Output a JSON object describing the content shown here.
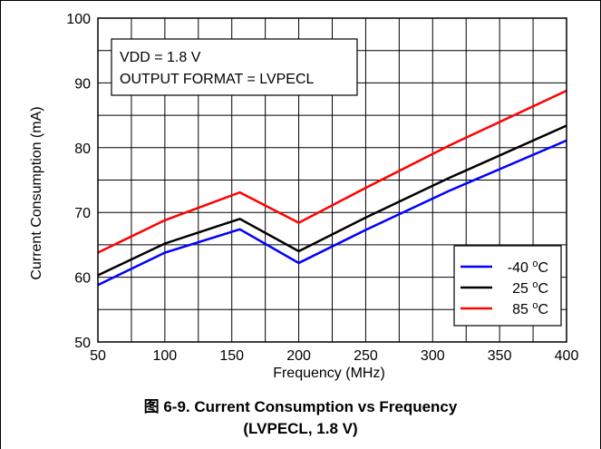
{
  "chart_data": {
    "type": "line",
    "xlabel": "Frequency (MHz)",
    "ylabel": "Current Consumption (mA)",
    "xlim": [
      50,
      400
    ],
    "ylim": [
      50,
      100
    ],
    "x_ticks": [
      "50",
      "100",
      "150",
      "200",
      "250",
      "300",
      "350",
      "400"
    ],
    "y_ticks": [
      "50",
      "60",
      "70",
      "80",
      "90",
      "100"
    ],
    "grid": true,
    "legend_position": "bottom-right",
    "annotation": [
      "VDD = 1.8 V",
      "OUTPUT FORMAT = LVPECL"
    ],
    "series": [
      {
        "name": "-40 °C",
        "legend_value": "-40",
        "color": "#0000ff",
        "x": [
          50,
          100,
          156,
          200,
          250,
          312,
          400
        ],
        "y": [
          58.8,
          63.8,
          67.4,
          62.2,
          67.3,
          73.3,
          81.1
        ]
      },
      {
        "name": "25 °C",
        "legend_value": "25",
        "color": "#000000",
        "x": [
          50,
          100,
          156,
          200,
          250,
          312,
          400
        ],
        "y": [
          60.3,
          65.2,
          69.0,
          64.0,
          69.2,
          75.3,
          83.4
        ]
      },
      {
        "name": "85 °C",
        "legend_value": "85",
        "color": "#ff0000",
        "x": [
          50,
          100,
          156,
          200,
          250,
          312,
          400
        ],
        "y": [
          63.8,
          68.8,
          73.1,
          68.4,
          73.8,
          80.3,
          88.8
        ]
      }
    ]
  },
  "legend_unit": "°C",
  "caption": {
    "line1": "图 6-9. Current Consumption vs Frequency",
    "line2": "(LVPECL, 1.8 V)"
  }
}
